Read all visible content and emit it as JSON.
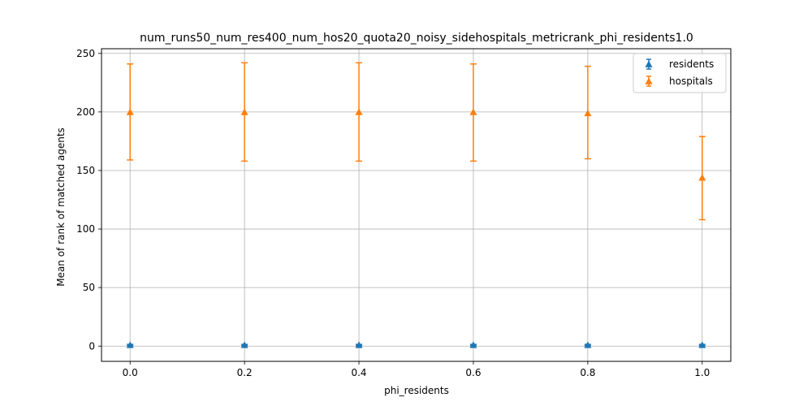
{
  "chart_data": {
    "type": "scatter",
    "title": "num_runs50_num_res400_num_hos20_quota20_noisy_sidehospitals_metricrank_phi_residents1.0",
    "xlabel": "phi_residents",
    "ylabel": "Mean of rank of matched agents",
    "xlim": [
      -0.05,
      1.05
    ],
    "ylim": [
      -13,
      254
    ],
    "xticks": [
      0.0,
      0.2,
      0.4,
      0.6,
      0.8,
      1.0
    ],
    "xtick_labels": [
      "0.0",
      "0.2",
      "0.4",
      "0.6",
      "0.8",
      "1.0"
    ],
    "yticks": [
      0,
      50,
      100,
      150,
      200,
      250
    ],
    "ytick_labels": [
      "0",
      "50",
      "100",
      "150",
      "200",
      "250"
    ],
    "grid": true,
    "legend_position": "top-right",
    "series": [
      {
        "name": "residents",
        "color": "#1f77b4",
        "marker": "triangle-up",
        "x": [
          0.0,
          0.2,
          0.4,
          0.6,
          0.8,
          1.0
        ],
        "y": [
          1,
          1,
          1,
          1,
          1,
          1
        ],
        "err_low": [
          0.5,
          0.5,
          0.5,
          0.5,
          0.5,
          0.5
        ],
        "err_high": [
          1.5,
          1.5,
          1.5,
          1.5,
          1.5,
          1.5
        ]
      },
      {
        "name": "hospitals",
        "color": "#ff7f0e",
        "marker": "triangle-up",
        "x": [
          0.0,
          0.2,
          0.4,
          0.6,
          0.8,
          1.0
        ],
        "y": [
          200,
          200,
          200,
          200,
          199,
          144
        ],
        "err_low": [
          159,
          158,
          158,
          158,
          160,
          108
        ],
        "err_high": [
          241,
          242,
          242,
          241,
          239,
          179
        ]
      }
    ]
  }
}
